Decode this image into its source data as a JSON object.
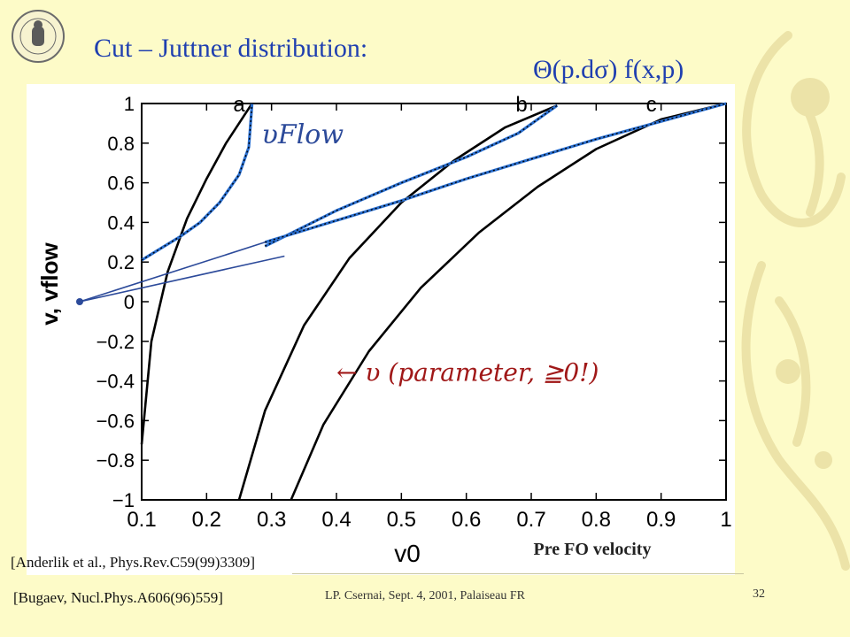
{
  "slide": {
    "title": "Cut – Juttner distribution:",
    "formula": "Θ(p.dσ) f(x,p)",
    "pre_fo_label": "Pre FO velocity",
    "ref_anderlik": "[Anderlik et al., Phys.Rev.C59(99)3309]",
    "ref_bugaev": "[Bugaev, Nucl.Phys.A606(96)559]",
    "footer": "LP. Csernai, Sept. 4, 2001, Palaiseau FR",
    "page_number": "32"
  },
  "colors": {
    "background": "#fdfbc8",
    "title_blue": "#1f3fb0",
    "curve_black": "#000000",
    "flow_blue": "#2a6fd0",
    "annotation_blue": "#2c4a9a",
    "annotation_red": "#a01818",
    "watermark": "#ece3a8"
  },
  "chart_data": {
    "type": "line",
    "title": "",
    "xlabel": "v0",
    "ylabel": "v, vflow",
    "xlim": [
      0.1,
      1
    ],
    "ylim": [
      -1,
      1
    ],
    "x_ticks": [
      0.1,
      0.2,
      0.3,
      0.4,
      0.5,
      0.6,
      0.7,
      0.8,
      0.9,
      1
    ],
    "x_tick_labels": [
      "0.1",
      "0.2",
      "0.3",
      "0.4",
      "0.5",
      "0.6",
      "0.7",
      "0.8",
      "0.9",
      "1"
    ],
    "y_ticks": [
      -1,
      -0.8,
      -0.6,
      -0.4,
      -0.2,
      0,
      0.2,
      0.4,
      0.6,
      0.8,
      1
    ],
    "y_tick_labels": [
      "−1",
      "−0.8",
      "−0.6",
      "−0.4",
      "−0.2",
      "0",
      "0.2",
      "0.4",
      "0.6",
      "0.8",
      "1"
    ],
    "series": [
      {
        "name": "a",
        "role": "v",
        "x": [
          0.1,
          0.115,
          0.14,
          0.17,
          0.2,
          0.23,
          0.26,
          0.27
        ],
        "y": [
          -0.72,
          -0.2,
          0.15,
          0.42,
          0.62,
          0.8,
          0.95,
          1.0
        ]
      },
      {
        "name": "a",
        "role": "v_flow",
        "x": [
          0.1,
          0.13,
          0.16,
          0.19,
          0.22,
          0.25,
          0.265,
          0.27
        ],
        "y": [
          0.21,
          0.27,
          0.33,
          0.4,
          0.5,
          0.64,
          0.78,
          1.0
        ]
      },
      {
        "name": "b",
        "role": "v",
        "x": [
          0.25,
          0.29,
          0.35,
          0.42,
          0.5,
          0.58,
          0.66,
          0.74
        ],
        "y": [
          -1.0,
          -0.55,
          -0.12,
          0.22,
          0.5,
          0.71,
          0.88,
          0.99
        ]
      },
      {
        "name": "b",
        "role": "v_flow",
        "x": [
          0.29,
          0.4,
          0.5,
          0.6,
          0.68,
          0.74
        ],
        "y": [
          0.28,
          0.46,
          0.6,
          0.73,
          0.85,
          0.99
        ]
      },
      {
        "name": "c",
        "role": "v",
        "x": [
          0.33,
          0.38,
          0.45,
          0.53,
          0.62,
          0.71,
          0.8,
          0.9,
          1.0
        ],
        "y": [
          -1.0,
          -0.62,
          -0.25,
          0.07,
          0.35,
          0.58,
          0.77,
          0.92,
          1.0
        ]
      },
      {
        "name": "c",
        "role": "v_flow",
        "x": [
          0.29,
          0.4,
          0.5,
          0.6,
          0.7,
          0.8,
          0.9,
          1.0
        ],
        "y": [
          0.3,
          0.41,
          0.51,
          0.62,
          0.72,
          0.82,
          0.91,
          1.0
        ]
      }
    ],
    "curve_labels": [
      "a",
      "b",
      "c"
    ],
    "annotations": {
      "vflow_note": "υFlow",
      "parameter_note": "← υ (parameter, ≧0!)"
    }
  }
}
